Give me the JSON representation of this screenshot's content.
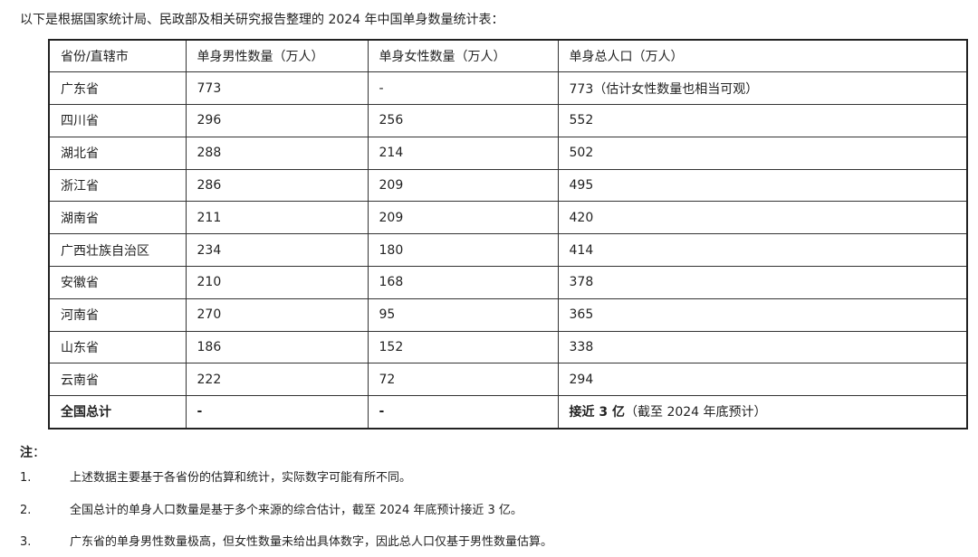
{
  "intro": "以下是根据国家统计局、民政部及相关研究报告整理的 2024 年中国单身数量统计表：",
  "table": {
    "headers": [
      "省份/直辖市",
      "单身男性数量（万人）",
      "单身女性数量（万人）",
      "单身总人口（万人）"
    ],
    "rows": [
      [
        "广东省",
        "773",
        "-",
        "773（估计女性数量也相当可观）"
      ],
      [
        "四川省",
        "296",
        "256",
        "552"
      ],
      [
        "湖北省",
        "288",
        "214",
        "502"
      ],
      [
        "浙江省",
        "286",
        "209",
        "495"
      ],
      [
        "湖南省",
        "211",
        "209",
        "420"
      ],
      [
        "广西壮族自治区",
        "234",
        "180",
        "414"
      ],
      [
        "安徽省",
        "210",
        "168",
        "378"
      ],
      [
        "河南省",
        "270",
        "95",
        "365"
      ],
      [
        "山东省",
        "186",
        "152",
        "338"
      ],
      [
        "云南省",
        "222",
        "72",
        "294"
      ]
    ],
    "total": {
      "label": "全国总计",
      "male": "-",
      "female": "-",
      "total_bold": "接近 3 亿",
      "total_rest": "（截至 2024 年底预计）"
    }
  },
  "notes": {
    "title": "注",
    "colon": "：",
    "items": [
      {
        "num": "1.",
        "text": "上述数据主要基于各省份的估算和统计，实际数字可能有所不同。"
      },
      {
        "num": "2.",
        "text": "全国总计的单身人口数量是基于多个来源的综合估计，截至 2024 年底预计接近 3 亿。"
      },
      {
        "num": "3.",
        "text": "广东省的单身男性数量极高，但女性数量未给出具体数字，因此总人口仅基于男性数量估算。"
      }
    ]
  }
}
